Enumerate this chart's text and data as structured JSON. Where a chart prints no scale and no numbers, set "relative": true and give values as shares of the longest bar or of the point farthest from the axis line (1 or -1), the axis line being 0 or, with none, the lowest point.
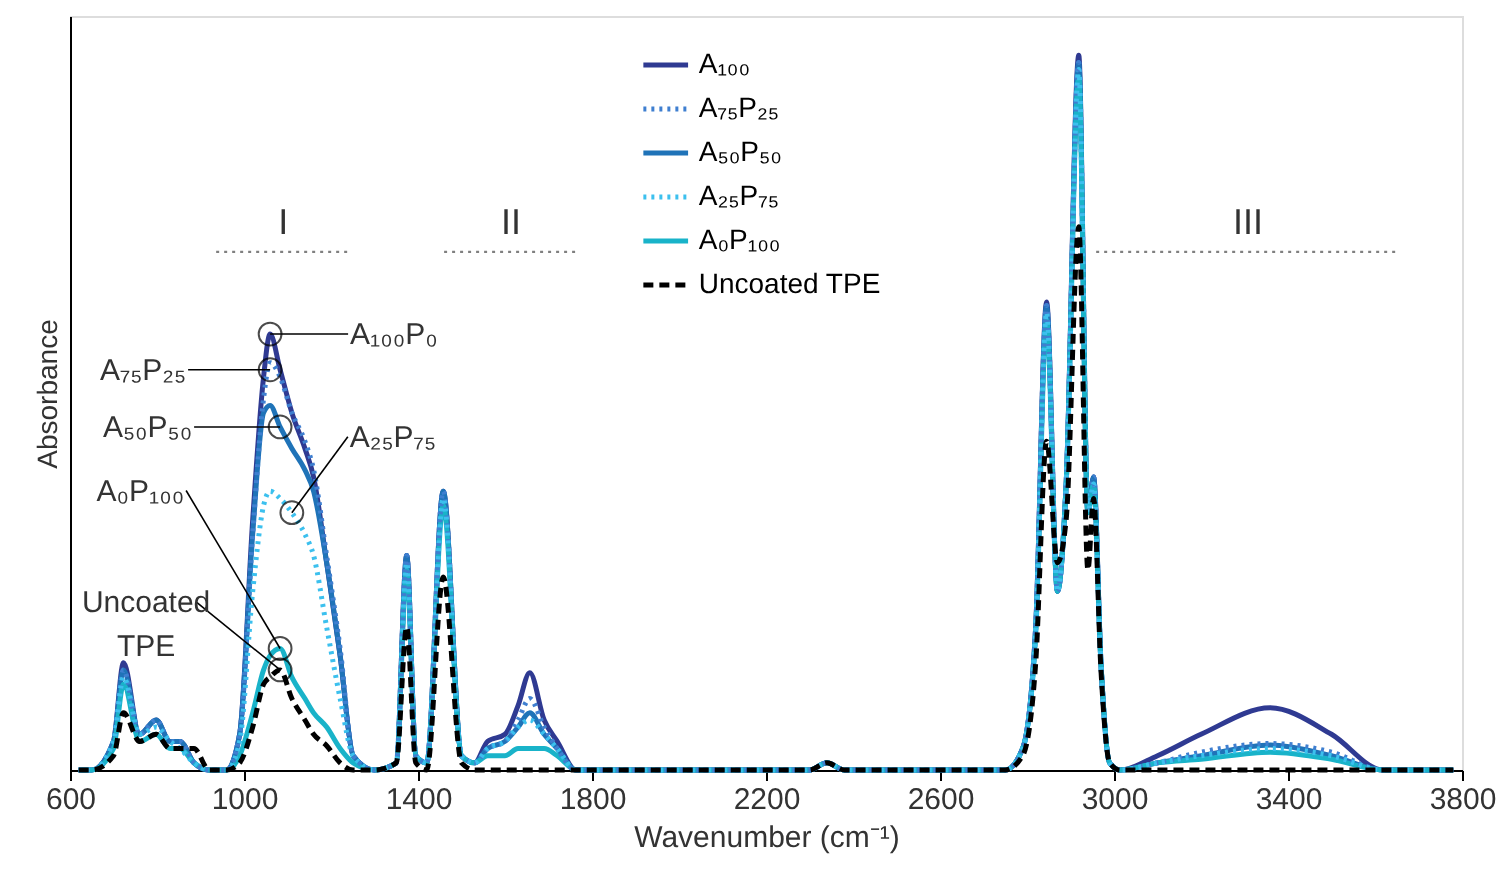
{
  "chart_data": {
    "type": "line",
    "relative": true,
    "xlabel": "Wavenumber (cm⁻¹)",
    "ylabel": "Absorbance",
    "legend": "top",
    "xlim": [
      600,
      3800
    ],
    "xticks": [
      600,
      1000,
      1400,
      1800,
      2200,
      2600,
      3000,
      3400,
      3800
    ],
    "x": [
      620,
      650,
      700,
      723,
      760,
      798,
      830,
      853,
      885,
      920,
      960,
      990,
      1020,
      1045,
      1060,
      1083,
      1110,
      1140,
      1160,
      1190,
      1221,
      1251,
      1300,
      1350,
      1374,
      1395,
      1420,
      1458,
      1500,
      1530,
      1560,
      1600,
      1630,
      1657,
      1690,
      1720,
      1763,
      1800,
      2300,
      2340,
      2380,
      2750,
      2790,
      2820,
      2845,
      2870,
      2890,
      2919,
      2940,
      2953,
      2970,
      2990,
      3014,
      3100,
      3200,
      3359,
      3500,
      3619,
      3700,
      3780
    ],
    "series": [
      {
        "name": "A₁₀₀",
        "color": "#2f3a92",
        "line_style": "solid",
        "values": [
          0,
          0,
          0.04,
          0.15,
          0.05,
          0.07,
          0.04,
          0.04,
          0.01,
          0,
          0,
          0.05,
          0.35,
          0.55,
          0.61,
          0.56,
          0.5,
          0.45,
          0.41,
          0.29,
          0.16,
          0.02,
          0,
          0.01,
          0.3,
          0.02,
          0.01,
          0.39,
          0.02,
          0.01,
          0.04,
          0.05,
          0.09,
          0.136,
          0.07,
          0.04,
          0,
          0,
          0,
          0.01,
          0,
          0,
          0.03,
          0.2,
          0.655,
          0.25,
          0.4,
          1.0,
          0.36,
          0.41,
          0.15,
          0.01,
          0,
          0.02,
          0.05,
          0.087,
          0.05,
          0,
          0,
          0
        ]
      },
      {
        "name": "A₇₅P₂₅",
        "color": "#3f7fd0",
        "line_style": "dotted",
        "values": [
          0,
          0,
          0.04,
          0.14,
          0.05,
          0.07,
          0.04,
          0.04,
          0.01,
          0,
          0,
          0.05,
          0.33,
          0.52,
          0.57,
          0.55,
          0.5,
          0.46,
          0.42,
          0.3,
          0.17,
          0.02,
          0,
          0.01,
          0.3,
          0.02,
          0.01,
          0.39,
          0.02,
          0.01,
          0.03,
          0.04,
          0.07,
          0.1,
          0.06,
          0.03,
          0,
          0,
          0,
          0.01,
          0,
          0,
          0.03,
          0.2,
          0.65,
          0.25,
          0.4,
          0.99,
          0.36,
          0.41,
          0.15,
          0.01,
          0,
          0.01,
          0.025,
          0.037,
          0.025,
          0,
          0,
          0
        ]
      },
      {
        "name": "A₅₀P₅₀",
        "color": "#1f73b8",
        "line_style": "solid",
        "values": [
          0,
          0,
          0.04,
          0.14,
          0.05,
          0.07,
          0.04,
          0.04,
          0.01,
          0,
          0,
          0.05,
          0.33,
          0.5,
          0.51,
          0.48,
          0.45,
          0.42,
          0.39,
          0.29,
          0.16,
          0.02,
          0,
          0.01,
          0.3,
          0.02,
          0.01,
          0.39,
          0.02,
          0.01,
          0.03,
          0.04,
          0.06,
          0.08,
          0.05,
          0.03,
          0,
          0,
          0,
          0.01,
          0,
          0,
          0.03,
          0.2,
          0.65,
          0.25,
          0.4,
          0.99,
          0.36,
          0.41,
          0.15,
          0.01,
          0,
          0.01,
          0.02,
          0.035,
          0.02,
          0,
          0,
          0
        ]
      },
      {
        "name": "A₂₅P₇₅",
        "color": "#3cc0ee",
        "line_style": "dotted",
        "values": [
          0,
          0,
          0.04,
          0.13,
          0.05,
          0.06,
          0.04,
          0.03,
          0.01,
          0,
          0,
          0.04,
          0.25,
          0.37,
          0.39,
          0.38,
          0.36,
          0.33,
          0.3,
          0.2,
          0.1,
          0.02,
          0,
          0.01,
          0.29,
          0.02,
          0.01,
          0.38,
          0.02,
          0.01,
          0.03,
          0.04,
          0.06,
          0.07,
          0.05,
          0.03,
          0,
          0,
          0,
          0.01,
          0,
          0,
          0.03,
          0.2,
          0.64,
          0.25,
          0.4,
          0.98,
          0.36,
          0.4,
          0.15,
          0.01,
          0,
          0.01,
          0.02,
          0.03,
          0.02,
          0,
          0,
          0
        ]
      },
      {
        "name": "A₀P₁₀₀",
        "color": "#19b3c9",
        "line_style": "solid",
        "values": [
          0,
          0,
          0.03,
          0.12,
          0.04,
          0.05,
          0.03,
          0.03,
          0.01,
          0,
          0,
          0.02,
          0.08,
          0.14,
          0.16,
          0.17,
          0.13,
          0.1,
          0.08,
          0.06,
          0.03,
          0.01,
          0,
          0.01,
          0.28,
          0.02,
          0.01,
          0.37,
          0.02,
          0.01,
          0.02,
          0.02,
          0.03,
          0.03,
          0.03,
          0.02,
          0,
          0,
          0,
          0.01,
          0,
          0,
          0.03,
          0.19,
          0.63,
          0.25,
          0.4,
          0.97,
          0.36,
          0.4,
          0.15,
          0.01,
          0,
          0.01,
          0.015,
          0.025,
          0.015,
          0,
          0,
          0
        ]
      },
      {
        "name": "Uncoated TPE",
        "color": "#000000",
        "line_style": "dashed",
        "values": [
          0,
          0,
          0.02,
          0.08,
          0.04,
          0.05,
          0.03,
          0.03,
          0.03,
          0,
          0,
          0.01,
          0.06,
          0.12,
          0.13,
          0.14,
          0.1,
          0.07,
          0.05,
          0.034,
          0.01,
          0,
          0,
          0.01,
          0.2,
          0.01,
          0,
          0.27,
          0.01,
          0,
          0,
          0,
          0,
          0,
          0,
          0,
          0,
          0,
          0,
          0.01,
          0,
          0,
          0.02,
          0.15,
          0.46,
          0.29,
          0.35,
          0.76,
          0.28,
          0.38,
          0.14,
          0.01,
          0,
          0,
          0,
          0,
          0,
          0,
          0,
          0
        ]
      },
      {
        "type": "line",
        "color": "#808080",
        "line_style": "dotted",
        "x": [
          936,
          1244
        ],
        "values": [
          0.725,
          0.725
        ]
      },
      {
        "type": "line",
        "color": "#808080",
        "line_style": "dotted",
        "x": [
          1460,
          1768
        ],
        "values": [
          0.725,
          0.725
        ]
      },
      {
        "type": "line",
        "color": "#808080",
        "line_style": "dotted",
        "x": [
          2959,
          3657
        ],
        "values": [
          0.725,
          0.725
        ]
      }
    ],
    "annotations": [
      {
        "text": "I",
        "x": 1090,
        "y": 0.725
      },
      {
        "text": "II",
        "x": 1614,
        "y": 0.725
      },
      {
        "text": "III",
        "x": 3308,
        "y": 0.725
      },
      {
        "text": "A₁₀₀P₀",
        "x": 1060,
        "y": 0.61
      },
      {
        "text": "A₇₅P₂₅",
        "x": 1060,
        "y": 0.56
      },
      {
        "text": "A₅₀P₅₀",
        "x": 1083,
        "y": 0.48
      },
      {
        "text": "A₂₅P₇₅",
        "x": 1110,
        "y": 0.36
      },
      {
        "text": "A₀P₁₀₀",
        "x": 1083,
        "y": 0.17
      },
      {
        "text": "Uncoated TPE",
        "x": 1083,
        "y": 0.14
      }
    ]
  }
}
